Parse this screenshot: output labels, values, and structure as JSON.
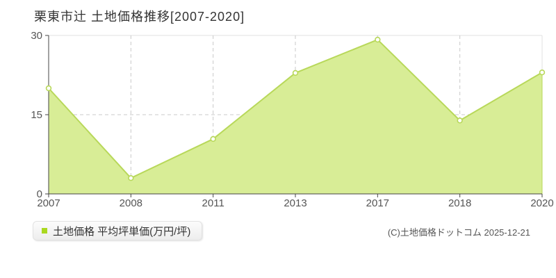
{
  "page": {
    "title": "栗東市辻 土地価格推移[2007-2020]",
    "copyright": "(C)土地価格ドットコム 2025-12-21"
  },
  "legend": {
    "label": "土地価格 平均坪単価(万円/坪)",
    "marker_color": "#aad820"
  },
  "chart_data": {
    "type": "area",
    "title": "栗東市辻 土地価格推移[2007-2020]",
    "categories": [
      "2007",
      "2008",
      "2011",
      "2013",
      "2017",
      "2018",
      "2020"
    ],
    "series": [
      {
        "name": "土地価格 平均坪単価(万円/坪)",
        "values": [
          20.0,
          3.0,
          10.4,
          22.9,
          29.2,
          13.9,
          23.0
        ]
      }
    ],
    "xlabel": "",
    "ylabel": "平均坪単価(万円/坪)",
    "ylim": [
      0,
      30
    ],
    "yticks": [
      0,
      15,
      30
    ],
    "grid": true,
    "legend_position": "bottom-left",
    "colors": {
      "line": "#b8d85a",
      "fill": "#d8ed96",
      "marker_fill": "#ffffff",
      "grid_dashed": "#c8c8c8",
      "plot_border": "#e2e2e2",
      "axis": "#444444",
      "tick_label": "#555555"
    }
  }
}
